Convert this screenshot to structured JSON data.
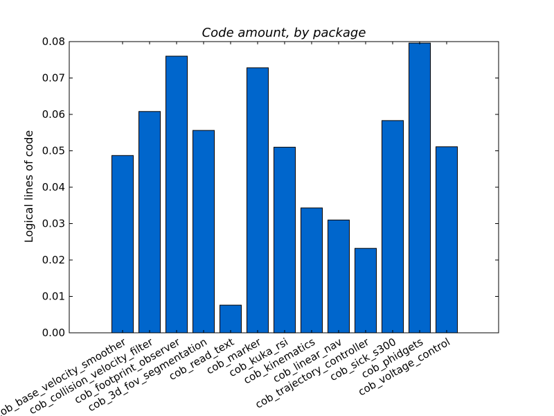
{
  "chart_data": {
    "type": "bar",
    "title": "Code amount, by package",
    "xlabel": "",
    "ylabel": "Logical lines of code",
    "ylim": [
      0,
      0.08
    ],
    "yticks": [
      "0.00",
      "0.01",
      "0.02",
      "0.03",
      "0.04",
      "0.05",
      "0.06",
      "0.07",
      "0.08"
    ],
    "categories": [
      "cob_base_velocity_smoother",
      "cob_collision_velocity_filter",
      "cob_footprint_observer",
      "cob_3d_fov_segmentation",
      "cob_read_text",
      "cob_marker",
      "cob_kuka_rsi",
      "cob_kinematics",
      "cob_linear_nav",
      "cob_trajectory_controller",
      "cob_sick_s300",
      "cob_phidgets",
      "cob_voltage_control"
    ],
    "values": [
      0.0487,
      0.0608,
      0.076,
      0.0556,
      0.0076,
      0.0728,
      0.051,
      0.0343,
      0.031,
      0.0232,
      0.0583,
      0.0796,
      0.0511
    ],
    "bar_color": "#0066cc",
    "edge_color": "#000000",
    "grid": false,
    "legend": "none"
  }
}
